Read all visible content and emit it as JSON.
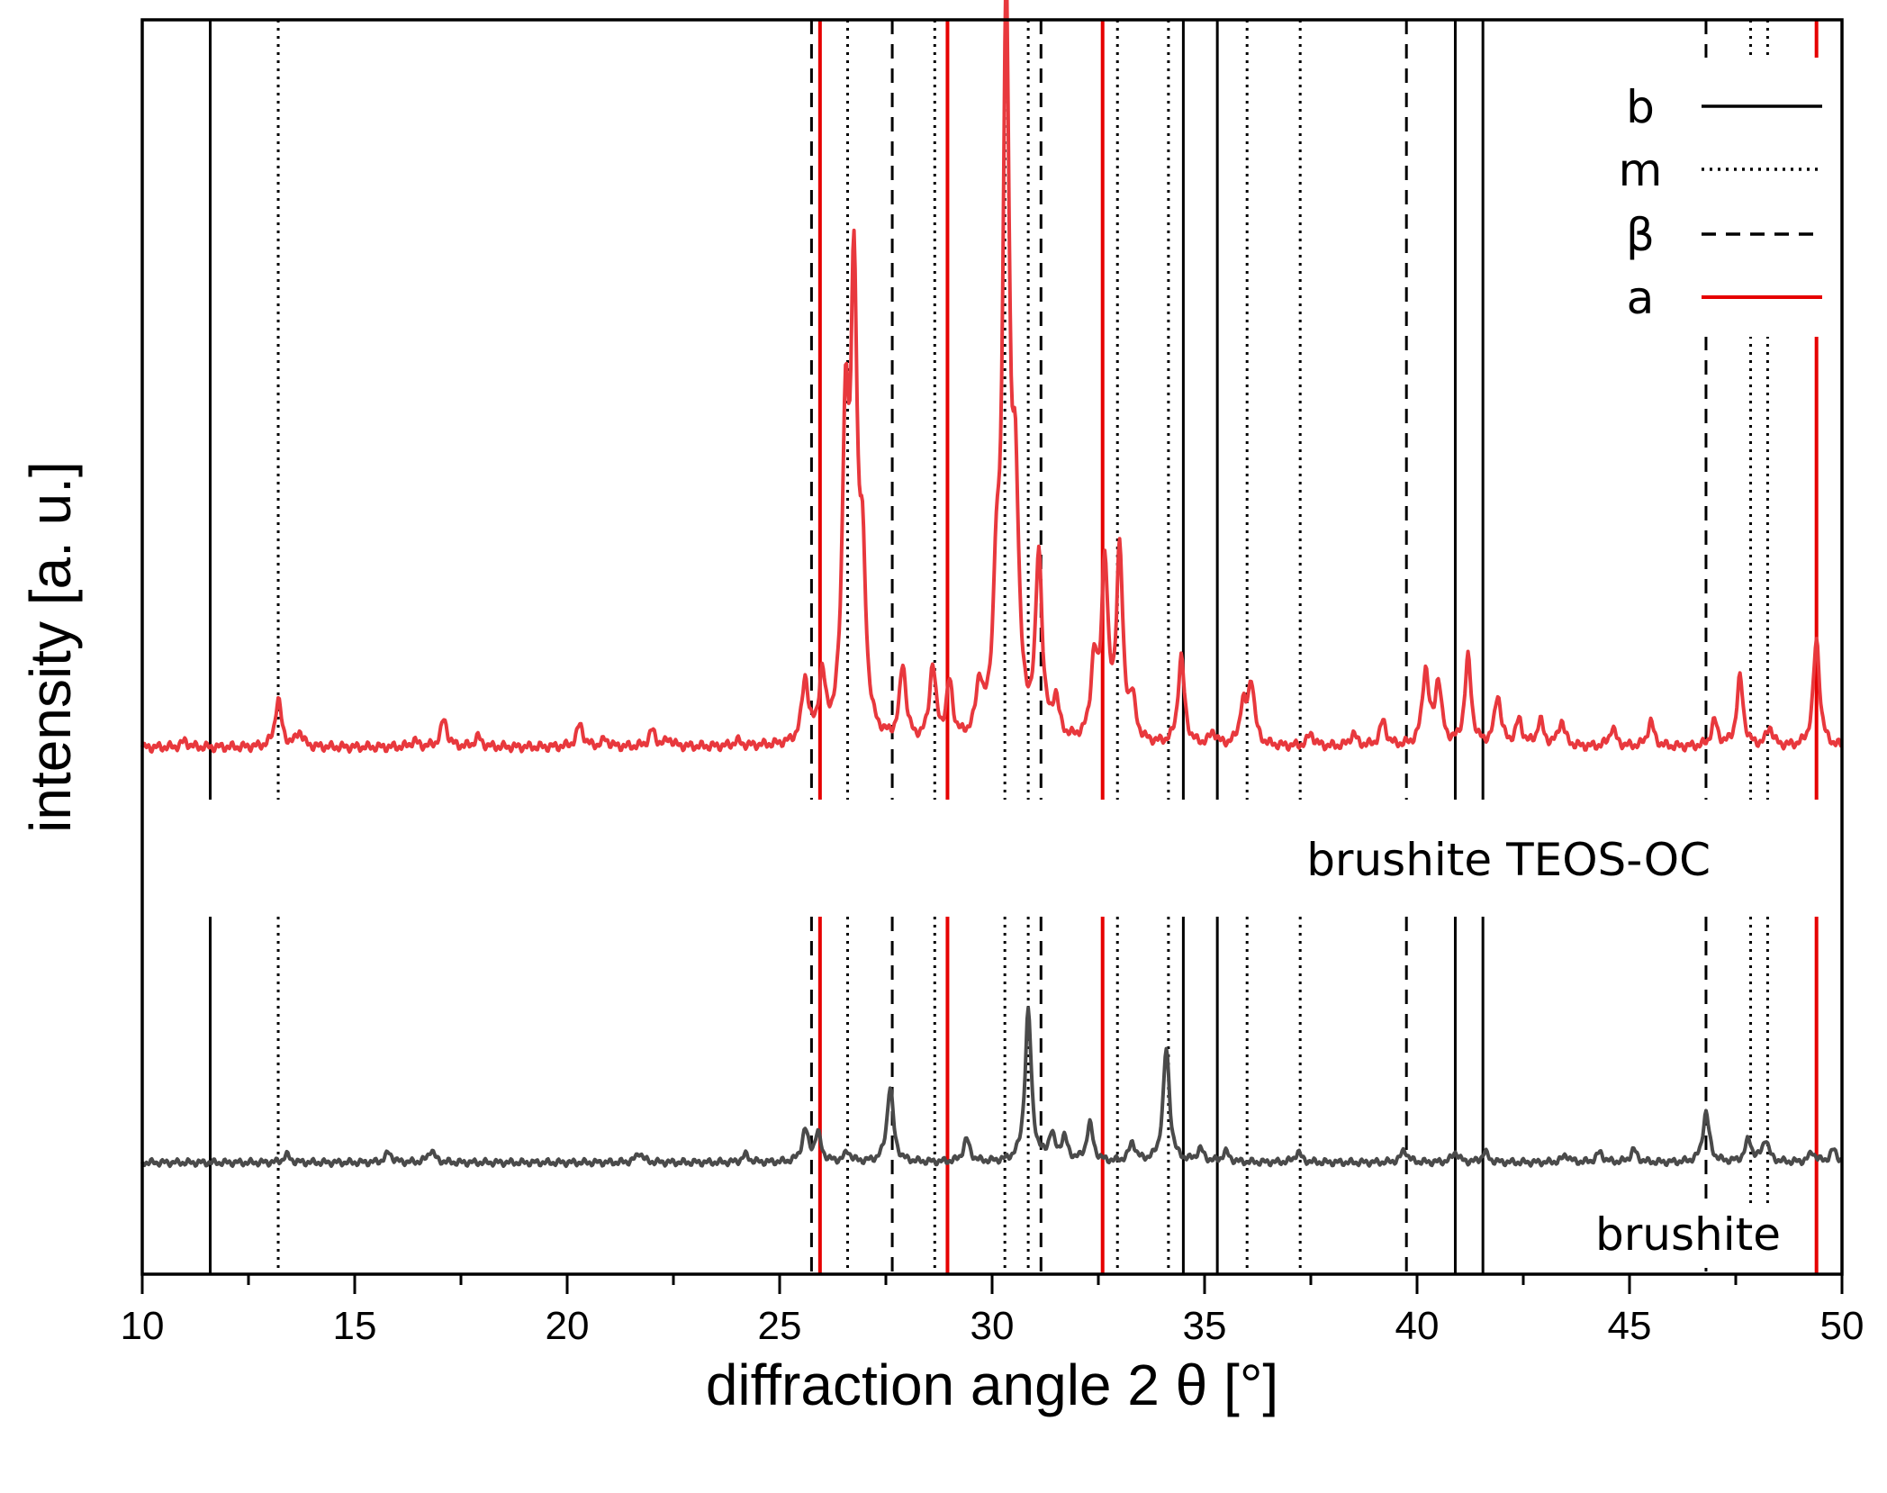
{
  "chart_data": {
    "type": "line",
    "title": "",
    "xlabel": "diffraction angle 2 θ [°]",
    "ylabel": "intensity [a. u.]",
    "xlim": [
      10,
      50
    ],
    "xticks": [
      10,
      15,
      20,
      25,
      30,
      35,
      40,
      45,
      50
    ],
    "ytick_labels": false,
    "grid": false,
    "legend_position": "top-right",
    "legend": [
      {
        "key": "b",
        "label": "b",
        "color": "#000000",
        "style": "solid"
      },
      {
        "key": "m",
        "label": "m",
        "color": "#000000",
        "style": "dotted"
      },
      {
        "key": "beta",
        "label": "β",
        "color": "#000000",
        "style": "dashed"
      },
      {
        "key": "a",
        "label": "a",
        "color": "#e60000",
        "style": "solid"
      }
    ],
    "reference_lines": {
      "b": {
        "color": "#000000",
        "style": "solid",
        "positions": [
          11.6,
          34.5,
          35.3,
          40.9,
          41.55
        ]
      },
      "m": {
        "color": "#000000",
        "style": "dotted",
        "positions": [
          13.2,
          26.6,
          28.65,
          30.3,
          30.85,
          32.95,
          34.15,
          36.0,
          37.25,
          47.85,
          48.25
        ]
      },
      "beta": {
        "color": "#000000",
        "style": "dashed",
        "positions": [
          25.75,
          27.65,
          31.15,
          39.75,
          46.8
        ]
      },
      "a": {
        "color": "#e60000",
        "style": "solid",
        "positions": [
          25.95,
          28.95,
          32.6,
          49.4
        ]
      }
    },
    "series": [
      {
        "name": "brushite TEOS-OC",
        "color": "#e8383d",
        "baseline": 0.42,
        "noise_amplitude": 0.004,
        "peaks": [
          {
            "x": 11.0,
            "h": 0.005
          },
          {
            "x": 13.2,
            "h": 0.038
          },
          {
            "x": 13.7,
            "h": 0.012
          },
          {
            "x": 16.4,
            "h": 0.005
          },
          {
            "x": 17.1,
            "h": 0.022
          },
          {
            "x": 17.9,
            "h": 0.008
          },
          {
            "x": 20.3,
            "h": 0.018
          },
          {
            "x": 20.9,
            "h": 0.006
          },
          {
            "x": 22.0,
            "h": 0.013
          },
          {
            "x": 22.4,
            "h": 0.006
          },
          {
            "x": 24.0,
            "h": 0.004
          },
          {
            "x": 25.6,
            "h": 0.05
          },
          {
            "x": 26.0,
            "h": 0.05
          },
          {
            "x": 26.55,
            "h": 0.24
          },
          {
            "x": 26.75,
            "h": 0.35
          },
          {
            "x": 26.95,
            "h": 0.12
          },
          {
            "x": 27.9,
            "h": 0.06
          },
          {
            "x": 28.6,
            "h": 0.06
          },
          {
            "x": 29.0,
            "h": 0.045
          },
          {
            "x": 29.7,
            "h": 0.04
          },
          {
            "x": 30.1,
            "h": 0.1
          },
          {
            "x": 30.33,
            "h": 0.58
          },
          {
            "x": 30.55,
            "h": 0.17
          },
          {
            "x": 31.1,
            "h": 0.145
          },
          {
            "x": 31.5,
            "h": 0.03
          },
          {
            "x": 32.4,
            "h": 0.06
          },
          {
            "x": 32.65,
            "h": 0.14
          },
          {
            "x": 33.0,
            "h": 0.15
          },
          {
            "x": 33.3,
            "h": 0.03
          },
          {
            "x": 34.45,
            "h": 0.07
          },
          {
            "x": 35.2,
            "h": 0.01
          },
          {
            "x": 35.9,
            "h": 0.03
          },
          {
            "x": 36.1,
            "h": 0.05
          },
          {
            "x": 37.5,
            "h": 0.01
          },
          {
            "x": 38.5,
            "h": 0.01
          },
          {
            "x": 39.2,
            "h": 0.02
          },
          {
            "x": 40.2,
            "h": 0.06
          },
          {
            "x": 40.5,
            "h": 0.05
          },
          {
            "x": 41.2,
            "h": 0.07
          },
          {
            "x": 41.9,
            "h": 0.04
          },
          {
            "x": 42.4,
            "h": 0.02
          },
          {
            "x": 42.9,
            "h": 0.02
          },
          {
            "x": 43.4,
            "h": 0.02
          },
          {
            "x": 44.6,
            "h": 0.015
          },
          {
            "x": 45.5,
            "h": 0.02
          },
          {
            "x": 47.0,
            "h": 0.02
          },
          {
            "x": 47.6,
            "h": 0.055
          },
          {
            "x": 48.3,
            "h": 0.015
          },
          {
            "x": 49.4,
            "h": 0.085
          }
        ]
      },
      {
        "name": "brushite",
        "color": "#4a4a4a",
        "baseline": 0.089,
        "noise_amplitude": 0.003,
        "peaks": [
          {
            "x": 13.4,
            "h": 0.006
          },
          {
            "x": 15.8,
            "h": 0.008
          },
          {
            "x": 16.8,
            "h": 0.01
          },
          {
            "x": 21.7,
            "h": 0.008
          },
          {
            "x": 24.2,
            "h": 0.006
          },
          {
            "x": 25.6,
            "h": 0.025
          },
          {
            "x": 25.9,
            "h": 0.022
          },
          {
            "x": 26.6,
            "h": 0.008
          },
          {
            "x": 27.6,
            "h": 0.06
          },
          {
            "x": 29.4,
            "h": 0.018
          },
          {
            "x": 30.85,
            "h": 0.12
          },
          {
            "x": 31.4,
            "h": 0.02
          },
          {
            "x": 31.7,
            "h": 0.018
          },
          {
            "x": 32.3,
            "h": 0.03
          },
          {
            "x": 33.3,
            "h": 0.015
          },
          {
            "x": 34.1,
            "h": 0.09
          },
          {
            "x": 34.9,
            "h": 0.01
          },
          {
            "x": 35.5,
            "h": 0.008
          },
          {
            "x": 37.2,
            "h": 0.008
          },
          {
            "x": 39.7,
            "h": 0.01
          },
          {
            "x": 40.9,
            "h": 0.008
          },
          {
            "x": 41.6,
            "h": 0.008
          },
          {
            "x": 43.5,
            "h": 0.006
          },
          {
            "x": 44.3,
            "h": 0.008
          },
          {
            "x": 45.1,
            "h": 0.01
          },
          {
            "x": 46.8,
            "h": 0.04
          },
          {
            "x": 47.8,
            "h": 0.018
          },
          {
            "x": 48.2,
            "h": 0.018
          },
          {
            "x": 49.3,
            "h": 0.008
          },
          {
            "x": 49.8,
            "h": 0.01
          }
        ]
      }
    ],
    "annotations": [
      {
        "text": "brushite TEOS-OC",
        "series": "brushite TEOS-OC"
      },
      {
        "text": "brushite",
        "series": "brushite"
      }
    ]
  }
}
